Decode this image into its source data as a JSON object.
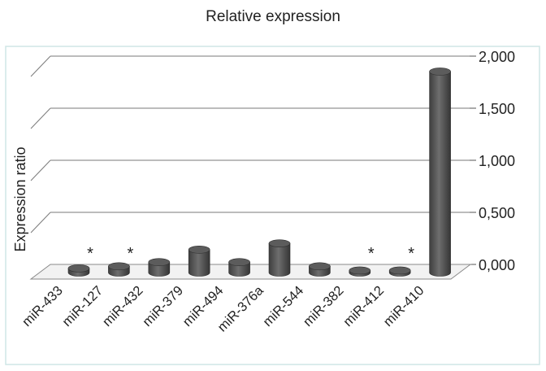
{
  "chart_data": {
    "type": "bar",
    "title": "Relative expression",
    "xlabel": "",
    "ylabel": "Expression ratio",
    "ylim": [
      0,
      2
    ],
    "yticks": [
      "0,000",
      "0,500",
      "1,000",
      "1,500",
      "2,000"
    ],
    "categories": [
      "miR-433",
      "miR-127",
      "miR-432",
      "miR-379",
      "miR-494",
      "miR-376a",
      "miR-544",
      "miR-382",
      "miR-412",
      "miR-410"
    ],
    "values": [
      0.04,
      0.06,
      0.1,
      0.22,
      0.1,
      0.28,
      0.06,
      0.02,
      0.02,
      1.93
    ],
    "annotations": [
      "*",
      "*",
      "",
      "",
      "",
      "",
      "",
      "*",
      "*",
      ""
    ],
    "grid": true,
    "bar_color": "#4a4a4a",
    "border_color": "#cfe6e6"
  }
}
